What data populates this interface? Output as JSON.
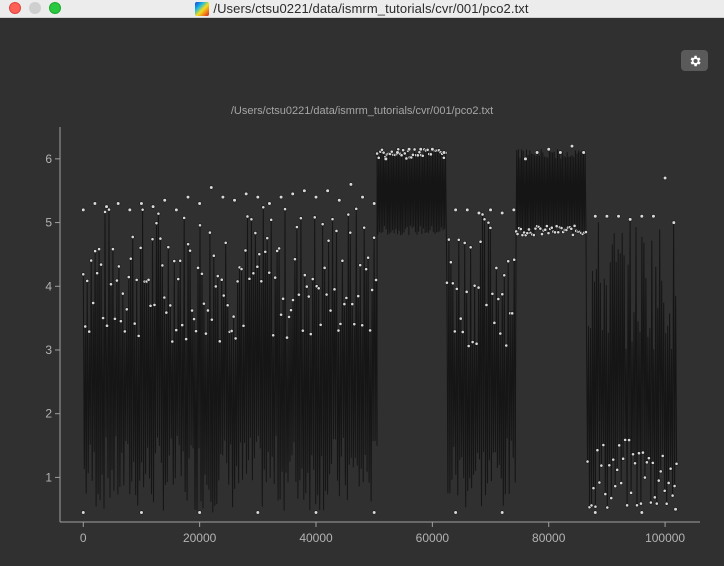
{
  "window": {
    "title": "/Users/ctsu0221/data/ismrm_tutorials/cvr/001/pco2.txt"
  },
  "toolbar": {
    "settings_icon": "gear-icon"
  },
  "colors": {
    "background": "#303030",
    "axis": "#a0a0a0",
    "data_stroke": "#151515",
    "data_fill": "#d8d8d8"
  },
  "chart_data": {
    "type": "scatter",
    "title": "/Users/ctsu0221/data/ismrm_tutorials/cvr/001/pco2.txt",
    "xlabel": "",
    "ylabel": "",
    "xlim": [
      -4000,
      106000
    ],
    "ylim": [
      0.3,
      6.5
    ],
    "x_ticks": [
      0,
      20000,
      40000,
      60000,
      80000,
      100000
    ],
    "y_ticks": [
      1,
      2,
      3,
      4,
      5,
      6
    ],
    "grid": false,
    "series": [
      {
        "segments": [
          {
            "x_start": 0,
            "x_end": 50500,
            "low": 0.45,
            "high": 5.3,
            "mode": "oscillating"
          },
          {
            "x_start": 50500,
            "x_end": 62500,
            "low": 4.8,
            "high": 6.15,
            "mode": "plateau"
          },
          {
            "x_start": 62500,
            "x_end": 74500,
            "low": 0.45,
            "high": 5.2,
            "mode": "oscillating"
          },
          {
            "x_start": 74500,
            "x_end": 86500,
            "low": 4.8,
            "high": 6.15,
            "mode": "plateau"
          },
          {
            "x_start": 86500,
            "x_end": 102000,
            "low": 0.45,
            "high": 5.1,
            "mode": "oscillating"
          }
        ],
        "points": [
          [
            0,
            5.2
          ],
          [
            2000,
            5.3
          ],
          [
            4000,
            5.25
          ],
          [
            6000,
            5.3
          ],
          [
            8000,
            5.2
          ],
          [
            10000,
            5.3
          ],
          [
            12000,
            5.25
          ],
          [
            14000,
            5.35
          ],
          [
            16000,
            5.2
          ],
          [
            18000,
            5.4
          ],
          [
            20000,
            5.3
          ],
          [
            22000,
            5.55
          ],
          [
            24000,
            5.4
          ],
          [
            26000,
            5.35
          ],
          [
            28000,
            5.45
          ],
          [
            30000,
            5.4
          ],
          [
            32000,
            5.3
          ],
          [
            34000,
            5.4
          ],
          [
            36000,
            5.45
          ],
          [
            38000,
            5.5
          ],
          [
            40000,
            5.4
          ],
          [
            42000,
            5.5
          ],
          [
            44000,
            5.35
          ],
          [
            46000,
            5.6
          ],
          [
            48000,
            5.4
          ],
          [
            50000,
            5.3
          ],
          [
            52000,
            6.0
          ],
          [
            54000,
            6.1
          ],
          [
            56000,
            6.15
          ],
          [
            58000,
            6.15
          ],
          [
            60000,
            6.15
          ],
          [
            62000,
            6.1
          ],
          [
            64000,
            5.2
          ],
          [
            66000,
            5.2
          ],
          [
            68000,
            5.15
          ],
          [
            70000,
            5.2
          ],
          [
            72000,
            5.15
          ],
          [
            74000,
            5.2
          ],
          [
            76000,
            6.0
          ],
          [
            78000,
            6.1
          ],
          [
            80000,
            6.15
          ],
          [
            82000,
            6.1
          ],
          [
            84000,
            6.2
          ],
          [
            86000,
            6.1
          ],
          [
            88000,
            5.1
          ],
          [
            90000,
            5.1
          ],
          [
            92000,
            5.1
          ],
          [
            94000,
            5.05
          ],
          [
            96000,
            5.1
          ],
          [
            98000,
            5.1
          ],
          [
            100000,
            5.7
          ],
          [
            101500,
            5.0
          ],
          [
            0,
            0.45
          ],
          [
            10000,
            0.45
          ],
          [
            20000,
            0.45
          ],
          [
            30000,
            0.45
          ],
          [
            40000,
            0.45
          ],
          [
            50000,
            0.45
          ],
          [
            64000,
            0.45
          ],
          [
            72000,
            0.45
          ],
          [
            88000,
            0.45
          ],
          [
            96000,
            0.45
          ],
          [
            101800,
            0.5
          ]
        ]
      }
    ]
  }
}
